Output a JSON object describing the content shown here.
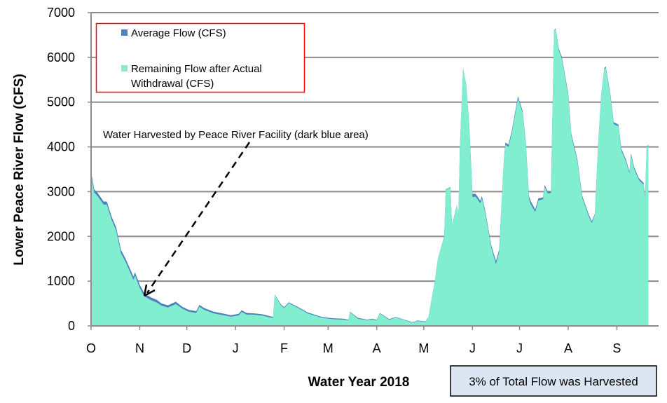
{
  "chart_data": {
    "type": "area",
    "title": "",
    "xlabel": "Water Year 2018",
    "ylabel": "Lower Peace River Flow (CFS)",
    "ylim": [
      0,
      7000
    ],
    "yticks": [
      "0",
      "1000",
      "2000",
      "3000",
      "4000",
      "5000",
      "6000",
      "7000"
    ],
    "xticks": [
      "O",
      "N",
      "D",
      "J",
      "F",
      "M",
      "A",
      "M",
      "J",
      "J",
      "A",
      "S"
    ],
    "xtick_dates": [
      "2017-10-01",
      "2017-11-01",
      "2017-12-01",
      "2018-01-01",
      "2018-02-01",
      "2018-03-01",
      "2018-04-01",
      "2018-05-01",
      "2018-06-01",
      "2018-07-01",
      "2018-08-01",
      "2018-09-01"
    ],
    "grid": "horizontal",
    "legend_placement": "top-left",
    "series": [
      {
        "name": "Average Flow (CFS)",
        "color": "#4f81bd"
      },
      {
        "name": "Remaining Flow after Actual Withdrawal (CFS)",
        "color": "#80eecf"
      }
    ],
    "points_columns": [
      "date",
      "Average Flow (CFS)",
      "Remaining Flow after Actual Withdrawal (CFS)"
    ],
    "points": [
      [
        "2017-10-01",
        3450,
        3380
      ],
      [
        "2017-10-03",
        3050,
        2980
      ],
      [
        "2017-10-05",
        2980,
        2910
      ],
      [
        "2017-10-09",
        2780,
        2710
      ],
      [
        "2017-10-11",
        2780,
        2710
      ],
      [
        "2017-10-14",
        2450,
        2380
      ],
      [
        "2017-10-17",
        2200,
        2130
      ],
      [
        "2017-10-20",
        1700,
        1630
      ],
      [
        "2017-10-23",
        1500,
        1430
      ],
      [
        "2017-10-28",
        1100,
        1030
      ],
      [
        "2017-10-29",
        1200,
        1130
      ],
      [
        "2017-11-01",
        920,
        850
      ],
      [
        "2017-11-04",
        720,
        660
      ],
      [
        "2017-11-08",
        640,
        580
      ],
      [
        "2017-11-12",
        580,
        520
      ],
      [
        "2017-11-15",
        500,
        450
      ],
      [
        "2017-11-19",
        460,
        410
      ],
      [
        "2017-11-24",
        540,
        490
      ],
      [
        "2017-11-28",
        430,
        390
      ],
      [
        "2017-12-02",
        360,
        320
      ],
      [
        "2017-12-07",
        330,
        290
      ],
      [
        "2017-12-09",
        470,
        430
      ],
      [
        "2017-12-12",
        400,
        360
      ],
      [
        "2017-12-18",
        320,
        280
      ],
      [
        "2017-12-25",
        270,
        235
      ],
      [
        "2017-12-29",
        240,
        205
      ],
      [
        "2018-01-03",
        270,
        235
      ],
      [
        "2018-01-05",
        350,
        315
      ],
      [
        "2018-01-08",
        290,
        255
      ],
      [
        "2018-01-13",
        280,
        250
      ],
      [
        "2018-01-18",
        260,
        230
      ],
      [
        "2018-01-25",
        200,
        175
      ],
      [
        "2018-01-26",
        700,
        690
      ],
      [
        "2018-01-30",
        480,
        460
      ],
      [
        "2018-02-01",
        420,
        400
      ],
      [
        "2018-02-04",
        530,
        510
      ],
      [
        "2018-02-10",
        420,
        400
      ],
      [
        "2018-02-16",
        300,
        280
      ],
      [
        "2018-02-25",
        200,
        180
      ],
      [
        "2018-03-04",
        170,
        150
      ],
      [
        "2018-03-11",
        160,
        140
      ],
      [
        "2018-03-14",
        140,
        125
      ],
      [
        "2018-03-15",
        320,
        310
      ],
      [
        "2018-03-20",
        180,
        160
      ],
      [
        "2018-03-26",
        140,
        125
      ],
      [
        "2018-03-29",
        160,
        145
      ],
      [
        "2018-04-01",
        140,
        125
      ],
      [
        "2018-04-03",
        290,
        280
      ],
      [
        "2018-04-09",
        150,
        135
      ],
      [
        "2018-04-13",
        200,
        190
      ],
      [
        "2018-04-24",
        80,
        70
      ],
      [
        "2018-04-27",
        120,
        110
      ],
      [
        "2018-05-02",
        100,
        90
      ],
      [
        "2018-05-04",
        200,
        195
      ],
      [
        "2018-05-08",
        1000,
        990
      ],
      [
        "2018-05-10",
        1500,
        1490
      ],
      [
        "2018-05-14",
        2000,
        1990
      ],
      [
        "2018-05-15",
        3050,
        3040
      ],
      [
        "2018-05-18",
        3100,
        3090
      ],
      [
        "2018-05-19",
        2250,
        2240
      ],
      [
        "2018-05-22",
        2700,
        2690
      ],
      [
        "2018-05-23",
        2450,
        2440
      ],
      [
        "2018-05-24",
        4000,
        3990
      ],
      [
        "2018-05-26",
        5750,
        5740
      ],
      [
        "2018-05-28",
        5400,
        5390
      ],
      [
        "2018-05-30",
        4500,
        4490
      ],
      [
        "2018-06-01",
        2950,
        2880
      ],
      [
        "2018-06-03",
        2950,
        2890
      ],
      [
        "2018-06-06",
        2800,
        2740
      ],
      [
        "2018-06-07",
        2900,
        2850
      ],
      [
        "2018-06-09",
        2600,
        2550
      ],
      [
        "2018-06-13",
        1800,
        1750
      ],
      [
        "2018-06-16",
        1450,
        1380
      ],
      [
        "2018-06-18",
        1700,
        1650
      ],
      [
        "2018-06-21",
        3700,
        3680
      ],
      [
        "2018-06-22",
        4100,
        4050
      ],
      [
        "2018-06-24",
        4050,
        4000
      ],
      [
        "2018-06-26",
        4350,
        4300
      ],
      [
        "2018-06-30",
        5130,
        5080
      ],
      [
        "2018-07-03",
        4800,
        4760
      ],
      [
        "2018-07-05",
        4100,
        4070
      ],
      [
        "2018-07-07",
        2900,
        2840
      ],
      [
        "2018-07-08",
        2800,
        2730
      ],
      [
        "2018-07-11",
        2600,
        2540
      ],
      [
        "2018-07-13",
        2850,
        2800
      ],
      [
        "2018-07-16",
        2870,
        2830
      ],
      [
        "2018-07-17",
        3150,
        3110
      ],
      [
        "2018-07-19",
        3000,
        2960
      ],
      [
        "2018-07-21",
        3000,
        2970
      ],
      [
        "2018-07-23",
        6600,
        6590
      ],
      [
        "2018-07-24",
        6650,
        6630
      ],
      [
        "2018-07-26",
        6200,
        6160
      ],
      [
        "2018-07-28",
        6000,
        5960
      ],
      [
        "2018-08-01",
        5200,
        5160
      ],
      [
        "2018-08-03",
        4300,
        4260
      ],
      [
        "2018-08-05",
        4000,
        3950
      ],
      [
        "2018-08-07",
        3700,
        3660
      ],
      [
        "2018-08-10",
        2900,
        2860
      ],
      [
        "2018-08-14",
        2500,
        2460
      ],
      [
        "2018-08-16",
        2340,
        2300
      ],
      [
        "2018-08-18",
        2500,
        2480
      ],
      [
        "2018-08-20",
        4000,
        3990
      ],
      [
        "2018-08-22",
        5150,
        5130
      ],
      [
        "2018-08-24",
        5750,
        5730
      ],
      [
        "2018-08-25",
        5800,
        5770
      ],
      [
        "2018-08-28",
        5150,
        5110
      ],
      [
        "2018-08-30",
        4550,
        4510
      ],
      [
        "2018-09-02",
        4500,
        4460
      ],
      [
        "2018-09-04",
        3950,
        3910
      ],
      [
        "2018-09-07",
        3700,
        3660
      ],
      [
        "2018-09-09",
        3450,
        3410
      ],
      [
        "2018-09-10",
        3850,
        3810
      ],
      [
        "2018-09-12",
        3550,
        3510
      ],
      [
        "2018-09-15",
        3300,
        3260
      ],
      [
        "2018-09-18",
        3200,
        3160
      ],
      [
        "2018-09-19",
        2900,
        2870
      ],
      [
        "2018-09-20",
        4000,
        3980
      ],
      [
        "2018-09-21",
        4050,
        4030
      ]
    ],
    "annotations": [
      {
        "text": "Water Harvested by Peace River Facility (dark blue area)",
        "arrow_to_date": "2017-11-04"
      }
    ]
  },
  "legend": {
    "items": [
      "Average Flow (CFS)",
      "Remaining Flow after Actual",
      "Withdrawal (CFS)"
    ],
    "border_color": "#ff0000"
  },
  "note_box": {
    "text": "3% of Total Flow was Harvested",
    "fill": "#dce6f2"
  },
  "annotation_text": "Water Harvested by Peace River Facility (dark blue area)"
}
